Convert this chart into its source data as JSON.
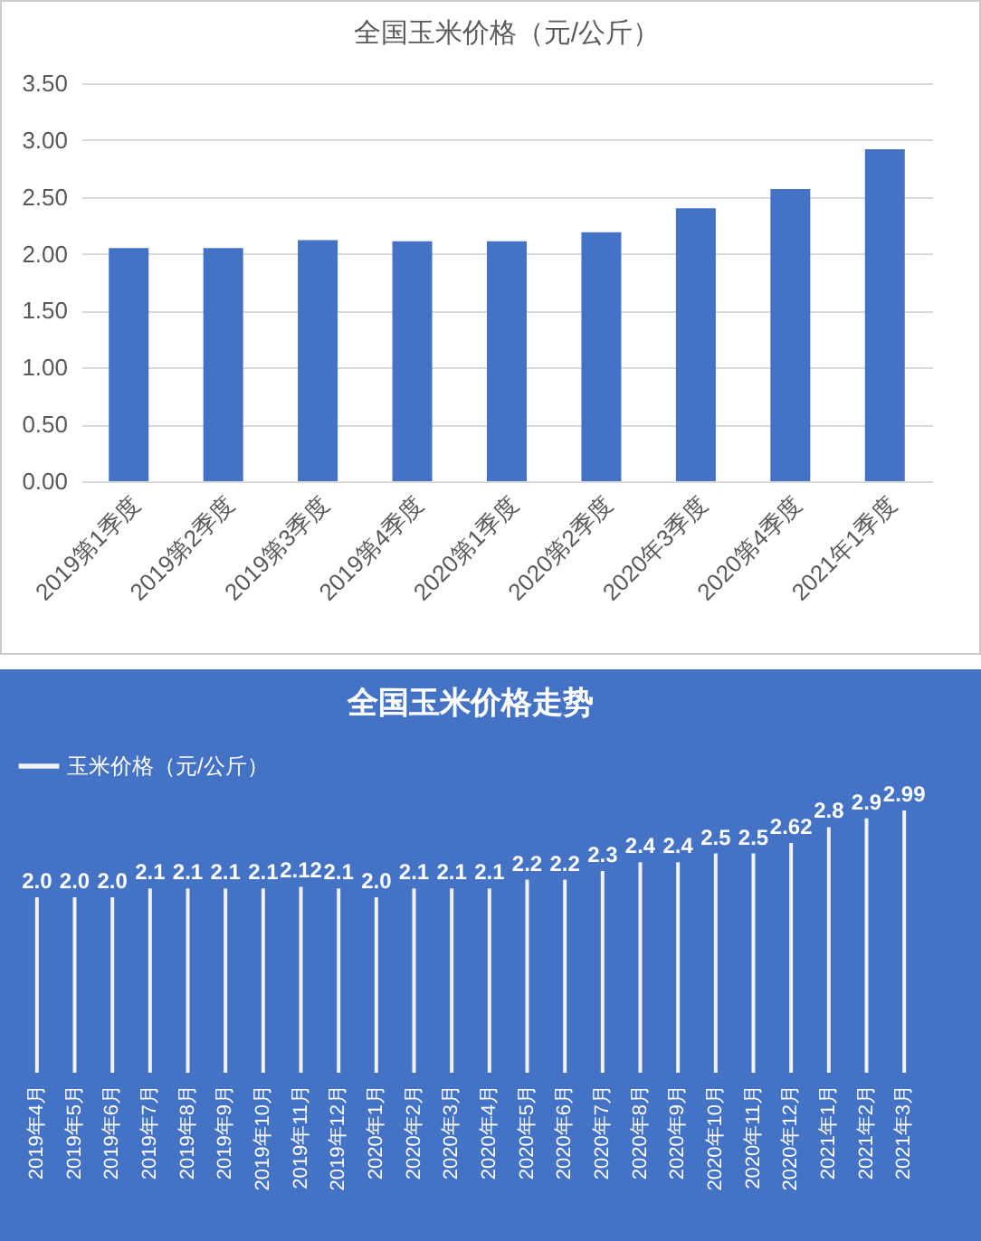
{
  "chart_data": [
    {
      "type": "bar",
      "title": "全国玉米价格（元/公斤）",
      "categories": [
        "2019第1季度",
        "2019第2季度",
        "2019第3季度",
        "2019第4季度",
        "2020第1季度",
        "2020第2季度",
        "2020年3季度",
        "2020第4季度",
        "2021年1季度"
      ],
      "values": [
        2.05,
        2.05,
        2.12,
        2.11,
        2.11,
        2.19,
        2.4,
        2.57,
        2.92
      ],
      "color": "#4472c4",
      "ylim": [
        0,
        3.5
      ],
      "yticks": [
        {
          "value": 0,
          "label": "0.00"
        },
        {
          "value": 0.5,
          "label": "0.50"
        },
        {
          "value": 1,
          "label": "1.00"
        },
        {
          "value": 1.5,
          "label": "1.50"
        },
        {
          "value": 2,
          "label": "2.00"
        },
        {
          "value": 2.5,
          "label": "2.50"
        },
        {
          "value": 3,
          "label": "3.00"
        },
        {
          "value": 3.5,
          "label": "3.50"
        }
      ],
      "grid": "y"
    },
    {
      "type": "bar",
      "title": "全国玉米价格走势",
      "categories": [
        "2019年4月",
        "2019年5月",
        "2019年6月",
        "2019年7月",
        "2019年8月",
        "2019年9月",
        "2019年10月",
        "2019年11月",
        "2019年12月",
        "2020年1月",
        "2020年2月",
        "2020年3月",
        "2020年4月",
        "2020年5月",
        "2020年6月",
        "2020年7月",
        "2020年8月",
        "2020年9月",
        "2020年10月",
        "2020年11月",
        "2020年12月",
        "2021年1月",
        "2021年2月",
        "2021年3月"
      ],
      "series": [
        {
          "name": "玉米价格（元/公斤）",
          "color": "#f2f2f2",
          "values": [
            2.0,
            2.0,
            2.0,
            2.1,
            2.1,
            2.1,
            2.1,
            2.12,
            2.1,
            2.0,
            2.1,
            2.1,
            2.1,
            2.2,
            2.2,
            2.3,
            2.4,
            2.4,
            2.5,
            2.5,
            2.62,
            2.8,
            2.9,
            2.99
          ],
          "value_labels": [
            "2.0",
            "2.0",
            "2.0",
            "2.1",
            "2.1",
            "2.1",
            "2.1",
            "2.12",
            "2.1",
            "2.0",
            "2.1",
            "2.1",
            "2.1",
            "2.2",
            "2.2",
            "2.3",
            "2.4",
            "2.4",
            "2.5",
            "2.5",
            "2.62",
            "2.8",
            "2.9",
            "2.99"
          ]
        }
      ],
      "legend": "top"
    }
  ]
}
